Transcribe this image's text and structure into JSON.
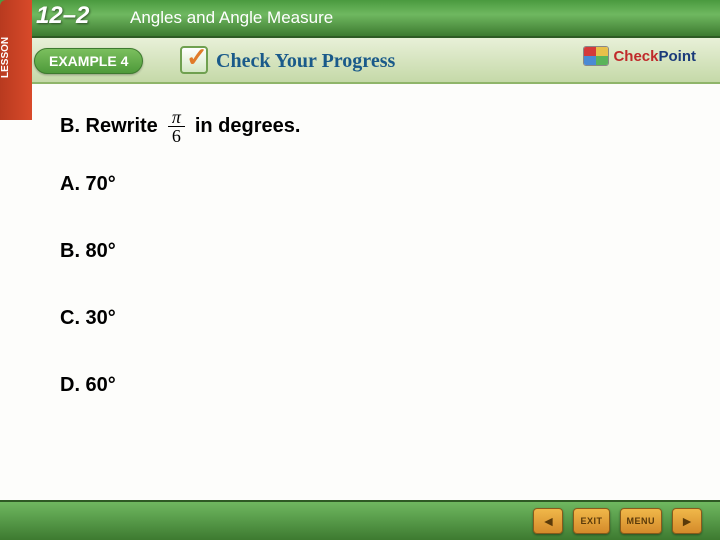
{
  "header": {
    "lesson_tab": "LESSON",
    "chapter_num": "12–2",
    "chapter_title": "Angles and Angle Measure"
  },
  "subheader": {
    "example_label": "EXAMPLE 4",
    "check_progress": "Check Your Progress",
    "checkpoint_red": "Check",
    "checkpoint_blue": "Point"
  },
  "question": {
    "prefix": "B.  Rewrite",
    "frac_num": "π",
    "frac_den": "6",
    "suffix": "in degrees."
  },
  "options": {
    "a": "A.  70°",
    "b": "B.  80°",
    "c": "C.  30°",
    "d": "D.  60°"
  },
  "footer": {
    "exit": "EXIT",
    "menu": "MENU"
  },
  "colors": {
    "header_green_top": "#4a9a3f",
    "header_green_bottom": "#3d7a30",
    "lesson_tab_bg": "#d94a2a",
    "example_pill_bg": "#4e9a3a",
    "check_progress_color": "#1a5a8a",
    "nav_btn_bg": "#d48a2a"
  }
}
